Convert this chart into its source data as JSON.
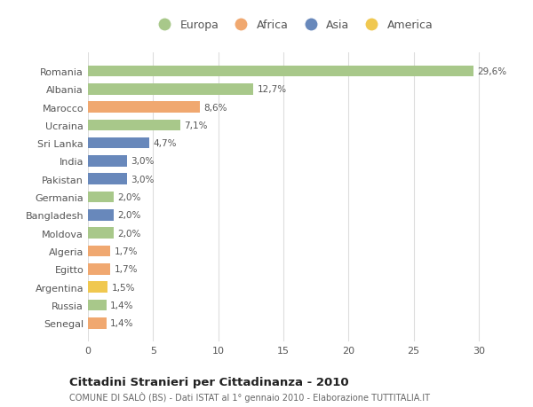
{
  "categories": [
    "Romania",
    "Albania",
    "Marocco",
    "Ucraina",
    "Sri Lanka",
    "India",
    "Pakistan",
    "Germania",
    "Bangladesh",
    "Moldova",
    "Algeria",
    "Egitto",
    "Argentina",
    "Russia",
    "Senegal"
  ],
  "values": [
    29.6,
    12.7,
    8.6,
    7.1,
    4.7,
    3.0,
    3.0,
    2.0,
    2.0,
    2.0,
    1.7,
    1.7,
    1.5,
    1.4,
    1.4
  ],
  "labels": [
    "29,6%",
    "12,7%",
    "8,6%",
    "7,1%",
    "4,7%",
    "3,0%",
    "3,0%",
    "2,0%",
    "2,0%",
    "2,0%",
    "1,7%",
    "1,7%",
    "1,5%",
    "1,4%",
    "1,4%"
  ],
  "continents": [
    "Europa",
    "Europa",
    "Africa",
    "Europa",
    "Asia",
    "Asia",
    "Asia",
    "Europa",
    "Asia",
    "Europa",
    "Africa",
    "Africa",
    "America",
    "Europa",
    "Africa"
  ],
  "colors": {
    "Europa": "#a8c88a",
    "Africa": "#f0a870",
    "Asia": "#6888bb",
    "America": "#f0c850"
  },
  "legend_order": [
    "Europa",
    "Africa",
    "Asia",
    "America"
  ],
  "title": "Cittadini Stranieri per Cittadinanza - 2010",
  "subtitle": "COMUNE DI SALÒ (BS) - Dati ISTAT al 1° gennaio 2010 - Elaborazione TUTTITALIA.IT",
  "xlim": [
    0,
    31.5
  ],
  "xticks": [
    0,
    5,
    10,
    15,
    20,
    25,
    30
  ],
  "background_color": "#ffffff",
  "grid_color": "#dddddd",
  "bar_height": 0.62,
  "figsize": [
    6.0,
    4.6
  ],
  "dpi": 100
}
